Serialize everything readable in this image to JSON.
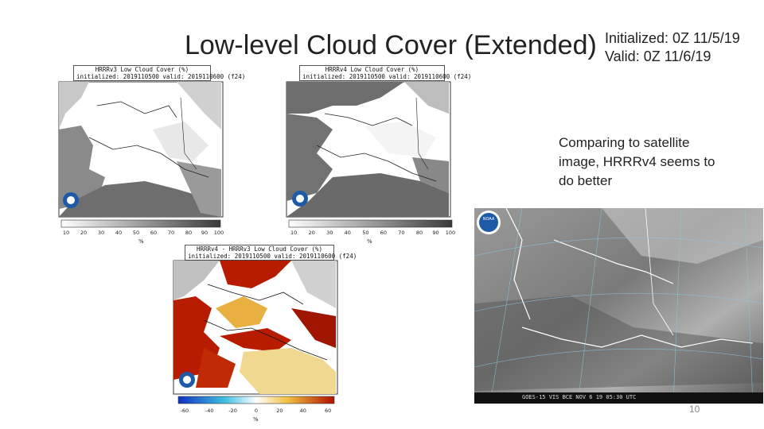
{
  "slide": {
    "title": "Low-level Cloud Cover (Extended)",
    "initialized": "Initialized: 0Z 11/5/19",
    "valid": "Valid: 0Z 11/6/19",
    "comparison_note": "Comparing to satellite image, HRRRv4 seems to do better",
    "page_number": "10"
  },
  "panels": {
    "hrrrv3": {
      "title": "HRRRv3 Low Cloud Cover (%)",
      "subtitle": "initialized: 2019110500 valid: 2019110600 (f24)",
      "ticks": [
        "10",
        "20",
        "30",
        "40",
        "50",
        "60",
        "70",
        "80",
        "90",
        "100"
      ],
      "unit": "%"
    },
    "hrrrv4": {
      "title": "HRRRv4 Low Cloud Cover (%)",
      "subtitle": "initialized: 2019110500 valid: 2019110600 (f24)",
      "ticks": [
        "10",
        "20",
        "30",
        "40",
        "50",
        "60",
        "70",
        "80",
        "90",
        "100"
      ],
      "unit": "%"
    },
    "diff": {
      "title": "HRRRv4 - HRRRv3 Low Cloud Cover (%)",
      "subtitle": "initialized: 2019110500 valid: 2019110600 (f24)",
      "ticks": [
        "-60",
        "-40",
        "-20",
        "0",
        "20",
        "40",
        "60"
      ],
      "unit": "%"
    },
    "satellite": {
      "footer": "GOES-15 VIS BCE  NOV 6 19 05:30 UTC",
      "logo": "NOAA"
    }
  },
  "colors": {
    "cloud_gray": "#707070",
    "land_gray": "#c0c0c0",
    "diff_red": "#b81c00",
    "diff_yellow": "#f0c040"
  }
}
